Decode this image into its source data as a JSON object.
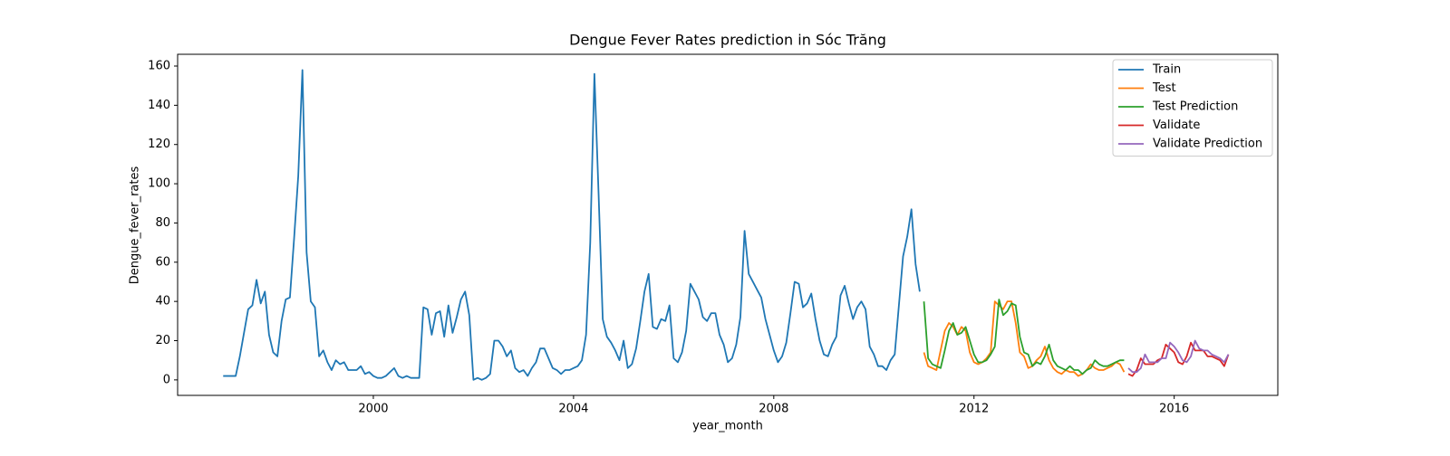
{
  "chart_data": {
    "type": "line",
    "title": "Dengue Fever Rates prediction in Sóc Trăng",
    "x_label": "year_month",
    "y_label": "Dengue_fever_rates",
    "xlim": [
      1996.09,
      2018.07
    ],
    "xticks": [
      2000,
      2004,
      2008,
      2012,
      2016
    ],
    "ylim": [
      -7.9,
      166
    ],
    "yticks": [
      0,
      20,
      40,
      60,
      80,
      100,
      120,
      140,
      160
    ],
    "legend": "upper right",
    "series": [
      {
        "name": "Train",
        "color": "#1f77b4",
        "x": [
          "1997-01",
          "1997-02",
          "1997-03",
          "1997-04",
          "1997-05",
          "1997-06",
          "1997-07",
          "1997-08",
          "1997-09",
          "1997-10",
          "1997-11",
          "1997-12",
          "1998-01",
          "1998-02",
          "1998-03",
          "1998-04",
          "1998-05",
          "1998-06",
          "1998-07",
          "1998-08",
          "1998-09",
          "1998-10",
          "1998-11",
          "1998-12",
          "1999-01",
          "1999-02",
          "1999-03",
          "1999-04",
          "1999-05",
          "1999-06",
          "1999-07",
          "1999-08",
          "1999-09",
          "1999-10",
          "1999-11",
          "1999-12",
          "2000-01",
          "2000-02",
          "2000-03",
          "2000-04",
          "2000-05",
          "2000-06",
          "2000-07",
          "2000-08",
          "2000-09",
          "2000-10",
          "2000-11",
          "2000-12",
          "2001-01",
          "2001-02",
          "2001-03",
          "2001-04",
          "2001-05",
          "2001-06",
          "2001-07",
          "2001-08",
          "2001-09",
          "2001-10",
          "2001-11",
          "2001-12",
          "2002-01",
          "2002-02",
          "2002-03",
          "2002-04",
          "2002-05",
          "2002-06",
          "2002-07",
          "2002-08",
          "2002-09",
          "2002-10",
          "2002-11",
          "2002-12",
          "2003-01",
          "2003-02",
          "2003-03",
          "2003-04",
          "2003-05",
          "2003-06",
          "2003-07",
          "2003-08",
          "2003-09",
          "2003-10",
          "2003-11",
          "2003-12",
          "2004-01",
          "2004-02",
          "2004-03",
          "2004-04",
          "2004-05",
          "2004-06",
          "2004-07",
          "2004-08",
          "2004-09",
          "2004-10",
          "2004-11",
          "2004-12",
          "2005-01",
          "2005-02",
          "2005-03",
          "2005-04",
          "2005-05",
          "2005-06",
          "2005-07",
          "2005-08",
          "2005-09",
          "2005-10",
          "2005-11",
          "2005-12",
          "2006-01",
          "2006-02",
          "2006-03",
          "2006-04",
          "2006-05",
          "2006-06",
          "2006-07",
          "2006-08",
          "2006-09",
          "2006-10",
          "2006-11",
          "2006-12",
          "2007-01",
          "2007-02",
          "2007-03",
          "2007-04",
          "2007-05",
          "2007-06",
          "2007-07",
          "2007-08",
          "2007-09",
          "2007-10",
          "2007-11",
          "2007-12",
          "2008-01",
          "2008-02",
          "2008-03",
          "2008-04",
          "2008-05",
          "2008-06",
          "2008-07",
          "2008-08",
          "2008-09",
          "2008-10",
          "2008-11",
          "2008-12",
          "2009-01",
          "2009-02",
          "2009-03",
          "2009-04",
          "2009-05",
          "2009-06",
          "2009-07",
          "2009-08",
          "2009-09",
          "2009-10",
          "2009-11",
          "2009-12",
          "2010-01",
          "2010-02",
          "2010-03",
          "2010-04",
          "2010-05",
          "2010-06",
          "2010-07",
          "2010-08",
          "2010-09",
          "2010-10",
          "2010-11",
          "2010-12"
        ],
        "values": [
          2,
          2,
          2,
          2,
          12,
          24,
          36,
          38,
          51,
          39,
          45,
          23,
          14,
          12,
          30,
          41,
          42,
          72,
          104,
          158,
          65,
          40,
          37,
          12,
          15,
          9,
          5,
          10,
          8,
          9,
          5,
          5,
          5,
          7,
          3,
          4,
          2,
          1,
          1,
          2,
          4,
          6,
          2,
          1,
          2,
          1,
          1,
          1,
          37,
          36,
          23,
          34,
          35,
          22,
          38,
          24,
          32,
          41,
          45,
          33,
          0,
          1,
          0,
          1,
          3,
          20,
          20,
          17,
          12,
          15,
          6,
          4,
          5,
          2,
          6,
          9,
          16,
          16,
          11,
          6,
          5,
          3,
          5,
          5,
          6,
          7,
          10,
          23,
          70,
          156,
          95,
          31,
          22,
          19,
          15,
          10,
          20,
          6,
          8,
          16,
          30,
          45,
          54,
          27,
          26,
          31,
          30,
          38,
          11,
          9,
          14,
          25,
          49,
          45,
          41,
          32,
          30,
          34,
          34,
          23,
          18,
          9,
          11,
          18,
          32,
          76,
          54,
          50,
          46,
          42,
          31,
          23,
          15,
          9,
          12,
          19,
          34,
          50,
          49,
          37,
          39,
          44,
          31,
          20,
          13,
          12,
          18,
          22,
          43,
          48,
          39,
          31,
          37,
          40,
          36,
          17,
          13,
          7,
          7,
          5,
          10,
          13,
          38,
          63,
          73,
          87,
          59,
          45
        ]
      },
      {
        "name": "Test",
        "color": "#ff7f0e",
        "x": [
          "2011-01",
          "2011-02",
          "2011-03",
          "2011-04",
          "2011-05",
          "2011-06",
          "2011-07",
          "2011-08",
          "2011-09",
          "2011-10",
          "2011-11",
          "2011-12",
          "2012-01",
          "2012-02",
          "2012-03",
          "2012-04",
          "2012-05",
          "2012-06",
          "2012-07",
          "2012-08",
          "2012-09",
          "2012-10",
          "2012-11",
          "2012-12",
          "2013-01",
          "2013-02",
          "2013-03",
          "2013-04",
          "2013-05",
          "2013-06",
          "2013-07",
          "2013-08",
          "2013-09",
          "2013-10",
          "2013-11",
          "2013-12",
          "2014-01",
          "2014-02",
          "2014-03",
          "2014-04",
          "2014-05",
          "2014-06",
          "2014-07",
          "2014-08",
          "2014-09",
          "2014-10",
          "2014-11",
          "2014-12",
          "2015-01"
        ],
        "values": [
          14,
          7,
          6,
          5,
          15,
          25,
          29,
          27,
          23,
          27,
          25,
          14,
          9,
          8,
          9,
          11,
          14,
          40,
          38,
          36,
          40,
          40,
          29,
          14,
          12,
          6,
          7,
          10,
          12,
          17,
          10,
          6,
          4,
          3,
          5,
          4,
          4,
          2,
          3,
          5,
          8,
          6,
          5,
          5,
          6,
          7,
          9,
          8,
          4
        ]
      },
      {
        "name": "Test Prediction",
        "color": "#2ca02c",
        "x": [
          "2011-01",
          "2011-02",
          "2011-03",
          "2011-04",
          "2011-05",
          "2011-06",
          "2011-07",
          "2011-08",
          "2011-09",
          "2011-10",
          "2011-11",
          "2011-12",
          "2012-01",
          "2012-02",
          "2012-03",
          "2012-04",
          "2012-05",
          "2012-06",
          "2012-07",
          "2012-08",
          "2012-09",
          "2012-10",
          "2012-11",
          "2012-12",
          "2013-01",
          "2013-02",
          "2013-03",
          "2013-04",
          "2013-05",
          "2013-06",
          "2013-07",
          "2013-08",
          "2013-09",
          "2013-10",
          "2013-11",
          "2013-12",
          "2014-01",
          "2014-02",
          "2014-03",
          "2014-04",
          "2014-05",
          "2014-06",
          "2014-07",
          "2014-08",
          "2014-09",
          "2014-10",
          "2014-11",
          "2014-12",
          "2015-01"
        ],
        "values": [
          40,
          11,
          8,
          7,
          6,
          15,
          25,
          29,
          23,
          24,
          27,
          20,
          13,
          9,
          9,
          10,
          13,
          17,
          41,
          33,
          35,
          39,
          38,
          22,
          14,
          13,
          7,
          9,
          8,
          12,
          18,
          10,
          7,
          6,
          5,
          7,
          5,
          5,
          3,
          5,
          6,
          10,
          8,
          7,
          7,
          8,
          9,
          10,
          10
        ]
      },
      {
        "name": "Validate",
        "color": "#d62728",
        "x": [
          "2015-02",
          "2015-03",
          "2015-04",
          "2015-05",
          "2015-06",
          "2015-07",
          "2015-08",
          "2015-09",
          "2015-10",
          "2015-11",
          "2015-12",
          "2016-01",
          "2016-02",
          "2016-03",
          "2016-04",
          "2016-05",
          "2016-06",
          "2016-07",
          "2016-08",
          "2016-09",
          "2016-10",
          "2016-11",
          "2016-12",
          "2017-01",
          "2017-02"
        ],
        "values": [
          3,
          2,
          5,
          11,
          8,
          8,
          8,
          10,
          11,
          18,
          16,
          14,
          9,
          8,
          12,
          19,
          15,
          15,
          15,
          12,
          12,
          11,
          10,
          7,
          13
        ]
      },
      {
        "name": "Validate Prediction",
        "color": "#9467bd",
        "x": [
          "2015-02",
          "2015-03",
          "2015-04",
          "2015-05",
          "2015-06",
          "2015-07",
          "2015-08",
          "2015-09",
          "2015-10",
          "2015-11",
          "2015-12",
          "2016-01",
          "2016-02",
          "2016-03",
          "2016-04",
          "2016-05",
          "2016-06",
          "2016-07",
          "2016-08",
          "2016-09",
          "2016-10",
          "2016-11",
          "2016-12",
          "2017-01",
          "2017-02"
        ],
        "values": [
          6,
          4,
          4,
          6,
          13,
          9,
          9,
          9,
          11,
          11,
          19,
          17,
          14,
          10,
          9,
          12,
          20,
          16,
          15,
          15,
          13,
          12,
          11,
          9,
          13
        ]
      }
    ]
  }
}
